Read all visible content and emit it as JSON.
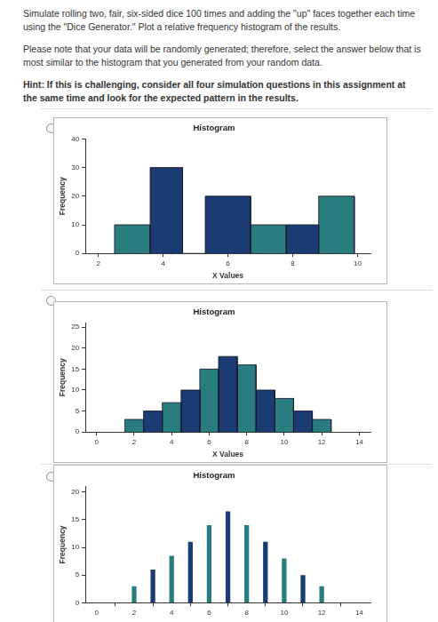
{
  "instructions": [
    "Simulate rolling two, fair, six-sided dice 100 times and adding the \"up\" faces together each time using the \"Dice Generator.\" Plot a relative frequency histogram of the results.",
    "Please note that your data will be randomly generated; therefore, select the answer below that is most similar to the histogram that you generated from your random data."
  ],
  "hint": "Hint: If this is challenging, consider all four simulation questions in this assignment at the same time and look for the expected pattern in the results.",
  "chart_data": [
    {
      "type": "histogram",
      "title": "Histogram",
      "x_label": "X Values",
      "y_label": "Frequency",
      "bins": [
        2.5,
        3.6,
        4.6,
        5.3,
        6.7,
        7.8,
        8.8,
        9.9
      ],
      "values": [
        10,
        30,
        0,
        20,
        10,
        10,
        20
      ],
      "colors": [
        "#2a7d7f",
        "#1b3b73",
        "#2a7d7f",
        "#1b3b73",
        "#2a7d7f",
        "#1b3b73",
        "#2a7d7f"
      ],
      "xlim": [
        1.6,
        10.4
      ],
      "xticks": [
        2,
        4,
        6,
        8,
        10
      ],
      "ylim": [
        0,
        40
      ],
      "yticks": [
        0,
        10,
        20,
        30,
        40
      ],
      "grid": false
    },
    {
      "type": "histogram",
      "title": "Histogram",
      "x_label": "X Values",
      "y_label": "Frequency",
      "bins": [
        1.5,
        2.5,
        3.5,
        4.5,
        5.5,
        6.5,
        7.5,
        8.5,
        9.5,
        10.5,
        11.5,
        12.5
      ],
      "values": [
        3,
        5,
        7,
        10,
        15,
        18,
        16,
        10,
        8,
        5,
        3
      ],
      "colors": [
        "#2a7d7f",
        "#1b3b73",
        "#2a7d7f",
        "#1b3b73",
        "#2a7d7f",
        "#1b3b73",
        "#2a7d7f",
        "#1b3b73",
        "#2a7d7f",
        "#1b3b73",
        "#2a7d7f"
      ],
      "xlim": [
        -0.6,
        14.6
      ],
      "xticks": [
        0,
        2,
        4,
        6,
        8,
        10,
        12,
        14
      ],
      "ylim": [
        0,
        26
      ],
      "yticks": [
        0,
        5,
        10,
        15,
        20,
        25
      ],
      "grid": false
    },
    {
      "type": "bar",
      "title": "Histogram",
      "y_label": "Frequency",
      "x": [
        2,
        3,
        4,
        5,
        6,
        7,
        8,
        9,
        10,
        11,
        12
      ],
      "values": [
        3,
        6,
        8.5,
        11,
        14,
        16.5,
        14,
        11,
        8,
        5,
        3
      ],
      "colors": [
        "#2a7d7f",
        "#1b3b73",
        "#2a7d7f",
        "#1b3b73",
        "#2a7d7f",
        "#1b3b73",
        "#2a7d7f",
        "#1b3b73",
        "#2a7d7f",
        "#1b3b73",
        "#2a7d7f"
      ],
      "xlim": [
        -0.6,
        14.6
      ],
      "xticks": [
        0,
        2,
        4,
        6,
        8,
        10,
        12,
        14
      ],
      "ylim": [
        0,
        21
      ],
      "yticks": [
        0,
        5,
        10,
        15,
        20
      ],
      "grid": false
    }
  ]
}
